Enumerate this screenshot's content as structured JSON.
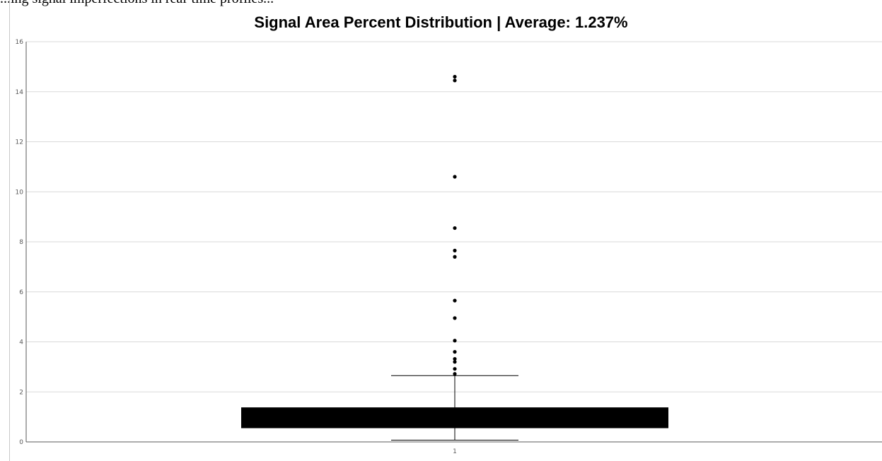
{
  "header_caption": "...ing signal imperfections in real-time profiles...",
  "chart_data": {
    "type": "box",
    "title": "Signal Area Percent Distribution | Average: 1.237%",
    "xlabel": "",
    "ylabel": "",
    "categories": [
      "1"
    ],
    "ylim": [
      0,
      16
    ],
    "y_ticks": [
      0,
      2,
      4,
      6,
      8,
      10,
      12,
      14,
      16
    ],
    "grid": true,
    "box": {
      "whisker_low": 0.07,
      "q1": 0.55,
      "median": 0.95,
      "q3": 1.38,
      "whisker_high": 2.65
    },
    "outliers": [
      2.72,
      2.92,
      3.2,
      3.32,
      3.6,
      4.05,
      4.95,
      5.65,
      7.4,
      7.65,
      8.55,
      10.6,
      14.45,
      14.6
    ]
  },
  "colors": {
    "box_fill": "#000000",
    "grid": "#d9d9d9",
    "axis": "#595959",
    "tick_label": "#595959"
  }
}
